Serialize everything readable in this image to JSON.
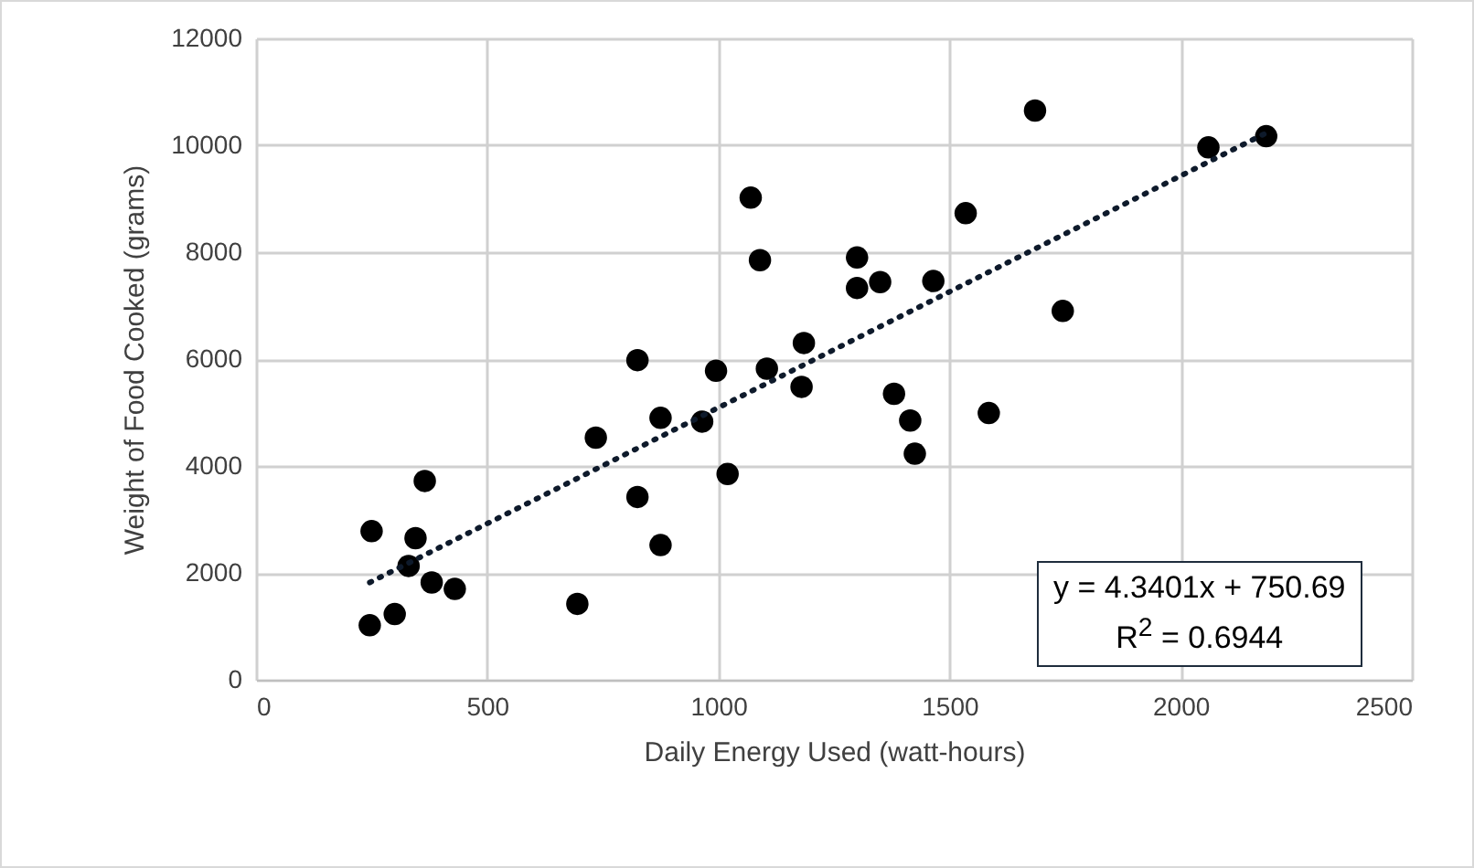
{
  "chart_data": {
    "type": "scatter",
    "xlabel": "Daily Energy Used (watt-hours)",
    "ylabel": "Weight of Food Cooked (grams)",
    "xlim": [
      0,
      2500
    ],
    "xticks": [
      0,
      500,
      1000,
      1500,
      2000,
      2500
    ],
    "ylim": [
      0,
      12000
    ],
    "yticks": [
      0,
      2000,
      4000,
      6000,
      8000,
      10000,
      12000
    ],
    "grid": true,
    "annotations": [
      "y = 4.3401x + 750.69",
      "R$^{2}$ = 0.6944"
    ],
    "series": [
      {
        "marker": "circle",
        "color": "#000000",
        "x": [
          246,
          250,
          300,
          330,
          345,
          365,
          380,
          430,
          695,
          735,
          825,
          825,
          875,
          875,
          965,
          995,
          1020,
          1070,
          1090,
          1105,
          1180,
          1185,
          1300,
          1300,
          1350,
          1380,
          1415,
          1425,
          1465,
          1535,
          1585,
          1685,
          1745,
          2060,
          2185
        ],
        "values": [
          1020,
          2780,
          1230,
          2130,
          2650,
          3720,
          1820,
          1700,
          1420,
          4530,
          5980,
          3420,
          4900,
          2520,
          4830,
          5780,
          3850,
          9020,
          7850,
          5820,
          5480,
          6300,
          7330,
          7900,
          7440,
          5350,
          4850,
          4230,
          7460,
          8730,
          4990,
          10650,
          6900,
          9960,
          10170
        ]
      },
      {
        "type": "line",
        "color": "#0e1a2b",
        "line_style": "dotted",
        "x": [
          246,
          2185
        ],
        "values": [
          1820,
          10230
        ]
      }
    ]
  }
}
